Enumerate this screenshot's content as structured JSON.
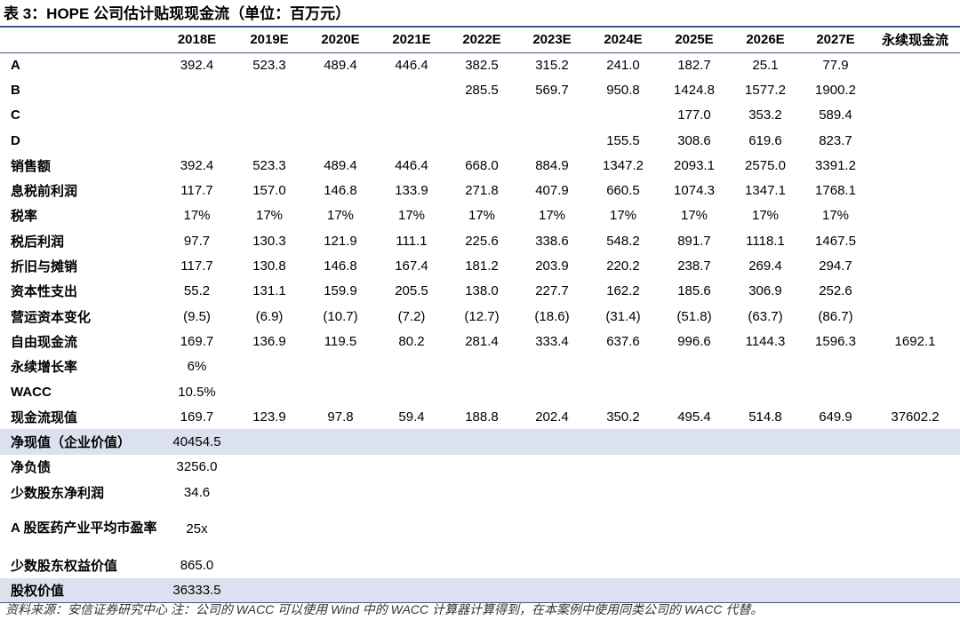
{
  "title": "表 3：HOPE 公司估计贴现现金流（单位：百万元）",
  "columns": [
    "",
    "2018E",
    "2019E",
    "2020E",
    "2021E",
    "2022E",
    "2023E",
    "2024E",
    "2025E",
    "2026E",
    "2027E",
    "永续现金流"
  ],
  "rows": [
    {
      "label": "A",
      "cells": [
        "392.4",
        "523.3",
        "489.4",
        "446.4",
        "382.5",
        "315.2",
        "241.0",
        "182.7",
        "25.1",
        "77.9",
        ""
      ]
    },
    {
      "label": "B",
      "cells": [
        "",
        "",
        "",
        "",
        "285.5",
        "569.7",
        "950.8",
        "1424.8",
        "1577.2",
        "1900.2",
        ""
      ]
    },
    {
      "label": "C",
      "cells": [
        "",
        "",
        "",
        "",
        "",
        "",
        "",
        "177.0",
        "353.2",
        "589.4",
        ""
      ]
    },
    {
      "label": "D",
      "cells": [
        "",
        "",
        "",
        "",
        "",
        "",
        "155.5",
        "308.6",
        "619.6",
        "823.7",
        ""
      ]
    },
    {
      "label": "销售额",
      "cells": [
        "392.4",
        "523.3",
        "489.4",
        "446.4",
        "668.0",
        "884.9",
        "1347.2",
        "2093.1",
        "2575.0",
        "3391.2",
        ""
      ]
    },
    {
      "label": "息税前利润",
      "cells": [
        "117.7",
        "157.0",
        "146.8",
        "133.9",
        "271.8",
        "407.9",
        "660.5",
        "1074.3",
        "1347.1",
        "1768.1",
        ""
      ]
    },
    {
      "label": "税率",
      "cells": [
        "17%",
        "17%",
        "17%",
        "17%",
        "17%",
        "17%",
        "17%",
        "17%",
        "17%",
        "17%",
        ""
      ]
    },
    {
      "label": "税后利润",
      "cells": [
        "97.7",
        "130.3",
        "121.9",
        "111.1",
        "225.6",
        "338.6",
        "548.2",
        "891.7",
        "1118.1",
        "1467.5",
        ""
      ]
    },
    {
      "label": "折旧与摊销",
      "cells": [
        "117.7",
        "130.8",
        "146.8",
        "167.4",
        "181.2",
        "203.9",
        "220.2",
        "238.7",
        "269.4",
        "294.7",
        ""
      ]
    },
    {
      "label": "资本性支出",
      "cells": [
        "55.2",
        "131.1",
        "159.9",
        "205.5",
        "138.0",
        "227.7",
        "162.2",
        "185.6",
        "306.9",
        "252.6",
        ""
      ]
    },
    {
      "label": "营运资本变化",
      "cells": [
        "(9.5)",
        "(6.9)",
        "(10.7)",
        "(7.2)",
        "(12.7)",
        "(18.6)",
        "(31.4)",
        "(51.8)",
        "(63.7)",
        "(86.7)",
        ""
      ]
    },
    {
      "label": "自由现金流",
      "cells": [
        "169.7",
        "136.9",
        "119.5",
        "80.2",
        "281.4",
        "333.4",
        "637.6",
        "996.6",
        "1144.3",
        "1596.3",
        "1692.1"
      ]
    },
    {
      "label": "永续增长率",
      "cells": [
        "6%",
        "",
        "",
        "",
        "",
        "",
        "",
        "",
        "",
        "",
        ""
      ]
    },
    {
      "label": "WACC",
      "cells": [
        "10.5%",
        "",
        "",
        "",
        "",
        "",
        "",
        "",
        "",
        "",
        ""
      ]
    },
    {
      "label": "现金流现值",
      "cells": [
        "169.7",
        "123.9",
        "97.8",
        "59.4",
        "188.8",
        "202.4",
        "350.2",
        "495.4",
        "514.8",
        "649.9",
        "37602.2"
      ]
    },
    {
      "label": "净现值（企业价值）",
      "cells": [
        "40454.5",
        "",
        "",
        "",
        "",
        "",
        "",
        "",
        "",
        "",
        ""
      ],
      "shade": true
    },
    {
      "label": "净负债",
      "cells": [
        "3256.0",
        "",
        "",
        "",
        "",
        "",
        "",
        "",
        "",
        "",
        ""
      ]
    },
    {
      "label": "少数股东净利润",
      "cells": [
        "34.6",
        "",
        "",
        "",
        "",
        "",
        "",
        "",
        "",
        "",
        ""
      ]
    },
    {
      "label": "A 股医药产业平均市盈率",
      "cells": [
        "25x",
        "",
        "",
        "",
        "",
        "",
        "",
        "",
        "",
        "",
        ""
      ],
      "tall": true
    },
    {
      "label": "少数股东权益价值",
      "cells": [
        "865.0",
        "",
        "",
        "",
        "",
        "",
        "",
        "",
        "",
        "",
        ""
      ]
    },
    {
      "label": "股权价值",
      "cells": [
        "36333.5",
        "",
        "",
        "",
        "",
        "",
        "",
        "",
        "",
        "",
        ""
      ],
      "shade": true,
      "last": true
    }
  ],
  "footnote": "资料来源：安信证券研究中心    注：公司的 WACC 可以使用 Wind 中的 WACC 计算器计算得到，在本案例中使用同类公司的 WACC 代替。"
}
